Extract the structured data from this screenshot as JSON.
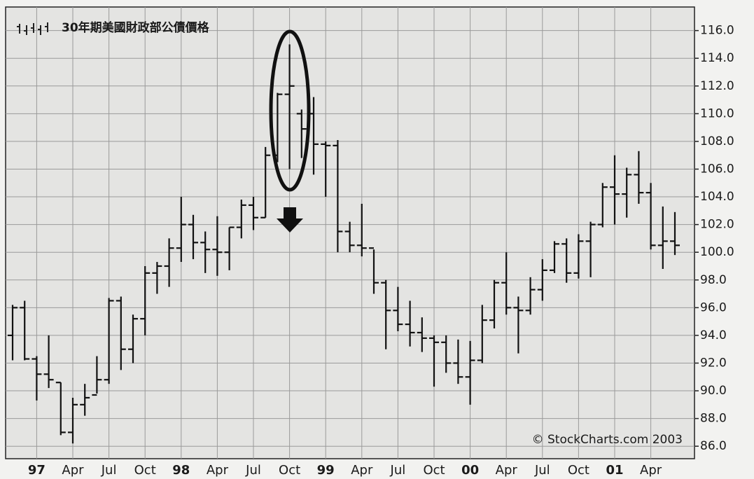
{
  "chart_data": {
    "type": "ohlc",
    "title": "30年期美國財政部公債價格",
    "annotation": "© StockCharts.com 2003",
    "color": "#111111",
    "grid": true,
    "categories": [
      null,
      null,
      "97",
      null,
      null,
      "Apr",
      null,
      null,
      "Jul",
      null,
      null,
      "Oct",
      null,
      null,
      "98",
      null,
      null,
      "Apr",
      null,
      null,
      "Jul",
      null,
      null,
      "Oct",
      null,
      null,
      "99",
      null,
      null,
      "Apr",
      null,
      null,
      "Jul",
      null,
      null,
      "Oct",
      null,
      null,
      "00",
      null,
      null,
      "Apr",
      null,
      null,
      "Jul",
      null,
      null,
      "Oct",
      null,
      null,
      "01",
      null,
      null,
      "Apr",
      null,
      null
    ],
    "open": [
      94,
      96,
      92.3,
      91.2,
      90.6,
      87,
      89,
      89.7,
      90.8,
      96.5,
      93,
      95.2,
      98.5,
      99,
      100.3,
      102,
      100.7,
      100.2,
      100,
      101.8,
      103.4,
      102.5,
      107,
      111.4,
      110,
      110,
      107.8,
      107.7,
      101.5,
      100.5,
      100.3,
      97.8,
      95.8,
      94.8,
      94.2,
      93.8,
      93.5,
      92,
      91,
      92.2,
      95.1,
      97.8,
      96,
      95.8,
      97.3,
      98.7,
      100.6,
      98.5,
      100.8,
      102,
      104.7,
      104.2,
      105.6,
      104.3,
      100.5,
      100.8
    ],
    "high": [
      96.2,
      96.5,
      92.5,
      94,
      90.6,
      89.5,
      90.5,
      92.5,
      96.7,
      96.8,
      95.5,
      99,
      99.3,
      101,
      104,
      102.7,
      101.5,
      102.6,
      101.8,
      103.8,
      104,
      107.6,
      111.5,
      115,
      110.3,
      111.2,
      108,
      108.1,
      102.2,
      103.5,
      100.2,
      98,
      97.5,
      96.5,
      95.3,
      94,
      94,
      93.7,
      93.6,
      96.2,
      98,
      100,
      96.8,
      98.2,
      99.5,
      100.8,
      101,
      101.3,
      102.2,
      105,
      107,
      106.1,
      107.3,
      105,
      103.3,
      102.9
    ],
    "low": [
      92.2,
      92.2,
      89.3,
      90.2,
      86.8,
      86.2,
      88.2,
      89.8,
      90.5,
      91.5,
      92,
      94,
      97,
      97.5,
      99.3,
      99.5,
      98.5,
      98.3,
      98.7,
      101,
      101.6,
      102.5,
      106.5,
      106,
      106.8,
      105.6,
      104,
      100,
      100,
      99.7,
      97,
      93,
      94.3,
      93.2,
      92.8,
      90.3,
      91.3,
      90.5,
      89,
      92,
      94.5,
      95.5,
      92.7,
      95.5,
      96.5,
      98.5,
      97.8,
      98.1,
      98.2,
      101.8,
      102,
      102.5,
      103.5,
      100.2,
      98.8,
      99.8
    ],
    "close": [
      96,
      92.3,
      91.2,
      90.8,
      87,
      89,
      89.5,
      90.8,
      96.5,
      93,
      95.2,
      98.5,
      99,
      100.3,
      102,
      100.7,
      100.2,
      100,
      101.8,
      103.4,
      102.5,
      107,
      111.4,
      112,
      108.9,
      107.8,
      107.7,
      101.5,
      100.5,
      100.3,
      97.8,
      95.8,
      94.8,
      94.2,
      93.8,
      93.5,
      92,
      91,
      92.2,
      95.1,
      97.8,
      96,
      95.8,
      97.3,
      98.7,
      100.6,
      98.5,
      100.8,
      102,
      104.7,
      104.2,
      105.6,
      104.3,
      100.5,
      100.8,
      100.5
    ],
    "ylim": [
      85.1,
      117.7
    ],
    "yticks": [
      {
        "value": 86,
        "label": "86.0"
      },
      {
        "value": 88,
        "label": "88.0"
      },
      {
        "value": 90,
        "label": "90.0"
      },
      {
        "value": 92,
        "label": "92.0"
      },
      {
        "value": 94,
        "label": "94.0"
      },
      {
        "value": 96,
        "label": "96.0"
      },
      {
        "value": 98,
        "label": "98.0"
      },
      {
        "value": 100,
        "label": "100.0"
      },
      {
        "value": 102,
        "label": "102.0"
      },
      {
        "value": 104,
        "label": "104.0"
      },
      {
        "value": 106,
        "label": "106.0"
      },
      {
        "value": 108,
        "label": "108.0"
      },
      {
        "value": 110,
        "label": "110.0"
      },
      {
        "value": 112,
        "label": "112.0"
      },
      {
        "value": 114,
        "label": "114.0"
      },
      {
        "value": 116,
        "label": "116.0"
      }
    ]
  }
}
